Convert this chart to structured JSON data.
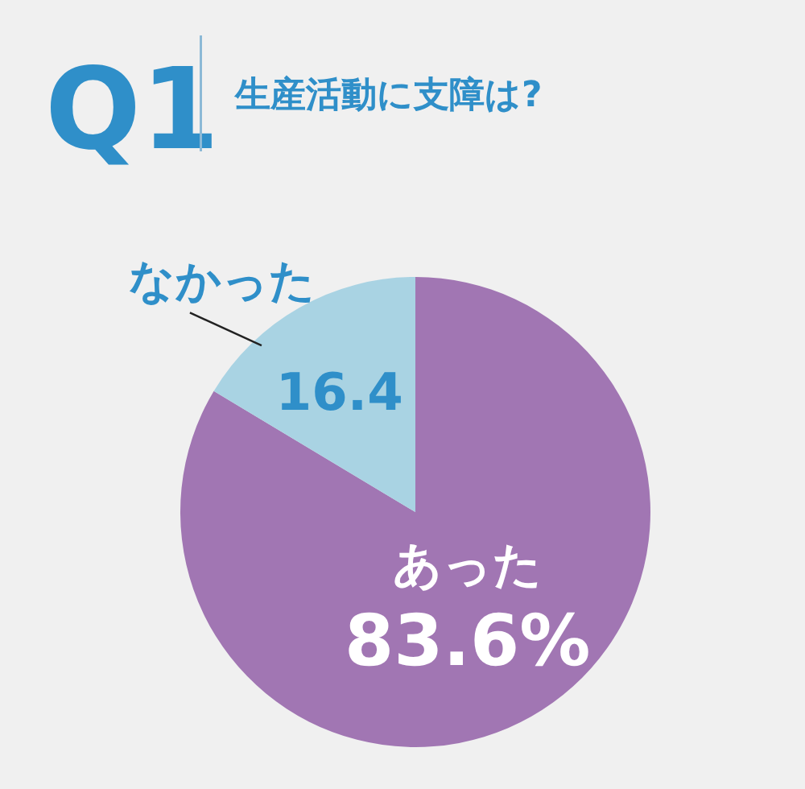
{
  "chart_data": {
    "type": "pie",
    "title": "Q1",
    "subtitle": "生産活動に支障は?",
    "categories": [
      "あった",
      "なかった"
    ],
    "values": [
      83.6,
      16.4
    ],
    "colors": [
      "#a176b3",
      "#a9d3e3"
    ],
    "value_labels": [
      "83.6%",
      "16.4"
    ]
  }
}
